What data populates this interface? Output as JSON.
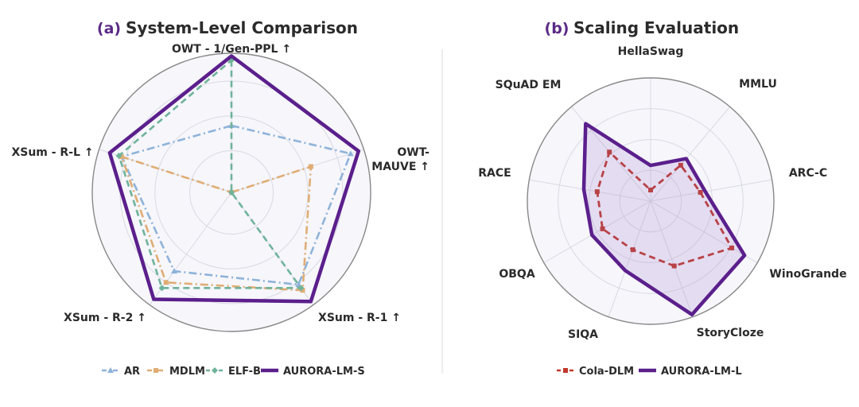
{
  "chart_data": [
    {
      "type": "radar",
      "panel_tag": "(a)",
      "title": "System-Level Comparison",
      "axes": [
        "OWT - 1/Gen-PPL ↑",
        "OWT-MAUVE ↑",
        "XSum - R-1 ↑",
        "XSum - R-2 ↑",
        "XSum - R-L ↑"
      ],
      "axis_label_lines": [
        [
          "OWT - 1/Gen-PPL ↑"
        ],
        [
          "OWT-",
          "MAUVE ↑"
        ],
        [
          "XSum - R-1 ↑"
        ],
        [
          "XSum - R-2 ↑"
        ],
        [
          "XSum - R-L ↑"
        ]
      ],
      "rmax": 1.0,
      "grid": true,
      "legend_position": "bottom",
      "series": [
        {
          "name": "AR",
          "color": "#8fb3d9",
          "dash": "dashdot",
          "marker": "triangle",
          "values": [
            0.48,
            0.9,
            0.82,
            0.7,
            0.83
          ]
        },
        {
          "name": "MDLM",
          "color": "#e0ad74",
          "dash": "dashdot",
          "marker": "square",
          "values": [
            0.0,
            0.6,
            0.87,
            0.8,
            0.83
          ]
        },
        {
          "name": "ELF-B",
          "color": "#6fb39a",
          "dash": "dash",
          "marker": "diamond",
          "values": [
            0.95,
            0.0,
            0.85,
            0.85,
            0.85
          ]
        },
        {
          "name": "AURORA-LM-S",
          "color": "#5b1f8c",
          "dash": "solid",
          "marker": "none",
          "values": [
            0.98,
            0.96,
            0.97,
            0.95,
            0.92
          ]
        }
      ]
    },
    {
      "type": "radar",
      "panel_tag": "(b)",
      "title": "Scaling Evaluation",
      "axes": [
        "HellaSwag",
        "MMLU",
        "ARC-C",
        "WinoGrande",
        "StoryCloze",
        "SIQA",
        "OBQA",
        "RACE",
        "SQuAD EM"
      ],
      "axis_label_lines": [
        [
          "HellaSwag"
        ],
        [
          "MMLU"
        ],
        [
          "ARC-C"
        ],
        [
          "WinoGrande"
        ],
        [
          "StoryCloze"
        ],
        [
          "SIQA"
        ],
        [
          "OBQA"
        ],
        [
          "RACE"
        ],
        [
          "SQuAD EM"
        ]
      ],
      "rmax": 1.0,
      "grid": true,
      "legend_position": "bottom",
      "series": [
        {
          "name": "Cola-DLM",
          "color": "#c0392b",
          "dash": "dash",
          "marker": "square",
          "values": [
            0.09,
            0.38,
            0.41,
            0.76,
            0.56,
            0.42,
            0.45,
            0.44,
            0.52
          ]
        },
        {
          "name": "AURORA-LM-L",
          "color": "#5b1f8c",
          "dash": "solid",
          "marker": "none",
          "fill": "rgba(150,110,200,0.18)",
          "values": [
            0.29,
            0.45,
            0.45,
            0.88,
            0.98,
            0.6,
            0.55,
            0.55,
            0.82
          ]
        }
      ]
    }
  ]
}
